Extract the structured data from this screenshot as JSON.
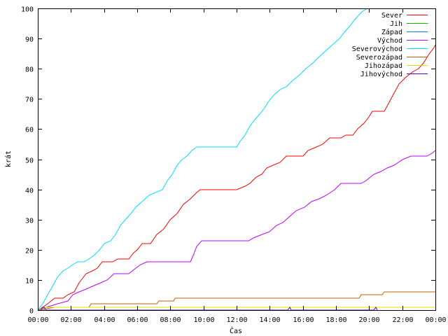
{
  "chart_data": {
    "type": "line",
    "xlabel": "Čas",
    "ylabel": "krát",
    "xlim": [
      0,
      24
    ],
    "ylim": [
      0,
      100
    ],
    "grid": false,
    "legend_position": "top-right",
    "x_ticks": [
      {
        "v": 0,
        "label": "00:00"
      },
      {
        "v": 2,
        "label": "02:00"
      },
      {
        "v": 4,
        "label": "04:00"
      },
      {
        "v": 6,
        "label": "06:00"
      },
      {
        "v": 8,
        "label": "08:00"
      },
      {
        "v": 10,
        "label": "10:00"
      },
      {
        "v": 12,
        "label": "12:00"
      },
      {
        "v": 14,
        "label": "14:00"
      },
      {
        "v": 16,
        "label": "16:00"
      },
      {
        "v": 18,
        "label": "18:00"
      },
      {
        "v": 20,
        "label": "20:00"
      },
      {
        "v": 22,
        "label": "22:00"
      },
      {
        "v": 24,
        "label": "00:00"
      }
    ],
    "y_ticks": [
      0,
      10,
      20,
      30,
      40,
      50,
      60,
      70,
      80,
      90,
      100
    ],
    "series": [
      {
        "name": "Sever",
        "color": "#ff0000",
        "points": [
          [
            0,
            0
          ],
          [
            0.3,
            1
          ],
          [
            0.6,
            2
          ],
          [
            1.0,
            4
          ],
          [
            1.5,
            4
          ],
          [
            1.8,
            5
          ],
          [
            2.2,
            6
          ],
          [
            2.5,
            9
          ],
          [
            2.9,
            12
          ],
          [
            3.3,
            13
          ],
          [
            3.6,
            14
          ],
          [
            3.9,
            16
          ],
          [
            4.5,
            16
          ],
          [
            4.8,
            17
          ],
          [
            5.5,
            17
          ],
          [
            5.8,
            19
          ],
          [
            6.0,
            20
          ],
          [
            6.3,
            22
          ],
          [
            6.8,
            22
          ],
          [
            7.2,
            25
          ],
          [
            7.6,
            27
          ],
          [
            8.0,
            30
          ],
          [
            8.4,
            32
          ],
          [
            8.8,
            35
          ],
          [
            9.2,
            37
          ],
          [
            9.6,
            39
          ],
          [
            9.8,
            40
          ],
          [
            12.0,
            40
          ],
          [
            12.5,
            41
          ],
          [
            12.8,
            42
          ],
          [
            13.2,
            44
          ],
          [
            13.5,
            45
          ],
          [
            13.8,
            47
          ],
          [
            14.2,
            48
          ],
          [
            14.6,
            49
          ],
          [
            15.0,
            51
          ],
          [
            16.0,
            51
          ],
          [
            16.3,
            53
          ],
          [
            16.8,
            54
          ],
          [
            17.2,
            55
          ],
          [
            17.6,
            57
          ],
          [
            18.3,
            57
          ],
          [
            18.6,
            58
          ],
          [
            19.0,
            58
          ],
          [
            19.3,
            60
          ],
          [
            19.7,
            62
          ],
          [
            20.0,
            64
          ],
          [
            20.2,
            66
          ],
          [
            20.9,
            66
          ],
          [
            21.2,
            69
          ],
          [
            21.5,
            72
          ],
          [
            21.8,
            75
          ],
          [
            22.2,
            77
          ],
          [
            22.6,
            79
          ],
          [
            23.0,
            80
          ],
          [
            23.3,
            82
          ],
          [
            23.6,
            85
          ],
          [
            23.9,
            87
          ],
          [
            24.0,
            88
          ]
        ]
      },
      {
        "name": "Jih",
        "color": "#00c000",
        "points": []
      },
      {
        "name": "Západ",
        "color": "#0080ff",
        "points": [
          [
            0,
            0
          ],
          [
            0.15,
            0
          ],
          [
            0.25,
            1
          ],
          [
            0.35,
            1
          ],
          [
            0.4,
            0
          ]
        ]
      },
      {
        "name": "Východ",
        "color": "#c000ff",
        "points": [
          [
            0,
            0
          ],
          [
            0.5,
            1
          ],
          [
            1.2,
            2
          ],
          [
            1.8,
            3
          ],
          [
            2.1,
            5
          ],
          [
            2.5,
            6
          ],
          [
            2.9,
            7
          ],
          [
            3.3,
            8
          ],
          [
            3.8,
            9
          ],
          [
            4.2,
            10
          ],
          [
            4.6,
            12
          ],
          [
            5.5,
            12
          ],
          [
            5.9,
            14
          ],
          [
            6.2,
            15
          ],
          [
            6.6,
            16
          ],
          [
            9.2,
            16
          ],
          [
            9.4,
            18
          ],
          [
            9.6,
            21
          ],
          [
            9.9,
            23
          ],
          [
            12.7,
            23
          ],
          [
            13.0,
            24
          ],
          [
            13.5,
            25
          ],
          [
            14.0,
            26
          ],
          [
            14.4,
            28
          ],
          [
            14.8,
            29
          ],
          [
            15.2,
            31
          ],
          [
            15.6,
            33
          ],
          [
            16.1,
            34
          ],
          [
            16.5,
            36
          ],
          [
            17.0,
            37
          ],
          [
            17.4,
            38
          ],
          [
            17.9,
            40
          ],
          [
            18.3,
            42
          ],
          [
            19.5,
            42
          ],
          [
            19.8,
            43
          ],
          [
            20.3,
            45
          ],
          [
            20.7,
            46
          ],
          [
            21.1,
            47
          ],
          [
            21.5,
            48
          ],
          [
            22.0,
            50
          ],
          [
            22.5,
            51
          ],
          [
            23.5,
            51
          ],
          [
            23.8,
            52
          ],
          [
            24.0,
            53
          ]
        ]
      },
      {
        "name": "Severovýchod",
        "color": "#00e0ff",
        "points": [
          [
            0,
            0
          ],
          [
            0.3,
            2
          ],
          [
            0.6,
            5
          ],
          [
            0.9,
            8
          ],
          [
            1.2,
            11
          ],
          [
            1.5,
            13
          ],
          [
            1.8,
            14
          ],
          [
            2.1,
            15
          ],
          [
            2.4,
            16
          ],
          [
            2.8,
            16
          ],
          [
            3.1,
            17
          ],
          [
            3.4,
            18
          ],
          [
            3.7,
            20
          ],
          [
            4.0,
            22
          ],
          [
            4.4,
            23
          ],
          [
            4.7,
            25
          ],
          [
            5.0,
            28
          ],
          [
            5.3,
            30
          ],
          [
            5.6,
            32
          ],
          [
            5.9,
            34
          ],
          [
            6.3,
            36
          ],
          [
            6.7,
            38
          ],
          [
            7.1,
            39
          ],
          [
            7.5,
            40
          ],
          [
            7.8,
            43
          ],
          [
            8.1,
            45
          ],
          [
            8.4,
            48
          ],
          [
            8.7,
            50
          ],
          [
            9.0,
            51
          ],
          [
            9.3,
            53
          ],
          [
            9.6,
            54
          ],
          [
            12.0,
            54
          ],
          [
            12.2,
            56
          ],
          [
            12.5,
            58
          ],
          [
            12.8,
            61
          ],
          [
            13.1,
            63
          ],
          [
            13.4,
            65
          ],
          [
            13.7,
            67
          ],
          [
            13.9,
            69
          ],
          [
            14.2,
            71
          ],
          [
            14.6,
            73
          ],
          [
            15.0,
            74
          ],
          [
            15.4,
            76
          ],
          [
            15.8,
            78
          ],
          [
            16.2,
            80
          ],
          [
            16.6,
            82
          ],
          [
            17.0,
            84
          ],
          [
            17.4,
            86
          ],
          [
            17.8,
            88
          ],
          [
            18.2,
            90
          ],
          [
            18.5,
            92
          ],
          [
            18.8,
            94
          ],
          [
            19.1,
            96
          ],
          [
            19.4,
            98
          ],
          [
            19.6,
            99
          ],
          [
            19.9,
            100
          ]
        ]
      },
      {
        "name": "Severozápad",
        "color": "#c06000",
        "points": [
          [
            0,
            0
          ],
          [
            1.0,
            1
          ],
          [
            3.1,
            1
          ],
          [
            3.2,
            2
          ],
          [
            7.2,
            2
          ],
          [
            7.3,
            3
          ],
          [
            8.2,
            3
          ],
          [
            8.3,
            4
          ],
          [
            19.4,
            4
          ],
          [
            19.5,
            5
          ],
          [
            20.8,
            5
          ],
          [
            20.9,
            6
          ],
          [
            24.0,
            6
          ]
        ]
      },
      {
        "name": "Jihozápad",
        "color": "#e0e000",
        "points": [
          [
            0,
            0
          ],
          [
            0.5,
            1
          ],
          [
            24.0,
            1
          ]
        ]
      },
      {
        "name": "Jihovýchod",
        "color": "#6000c0",
        "points": [
          [
            0,
            0
          ],
          [
            0.2,
            0
          ],
          [
            0.3,
            1
          ],
          [
            0.4,
            1
          ],
          [
            0.5,
            0
          ],
          [
            15.1,
            0
          ],
          [
            15.2,
            1
          ],
          [
            15.3,
            0
          ],
          [
            20.3,
            0
          ],
          [
            20.4,
            1
          ],
          [
            20.5,
            0
          ]
        ]
      }
    ]
  }
}
